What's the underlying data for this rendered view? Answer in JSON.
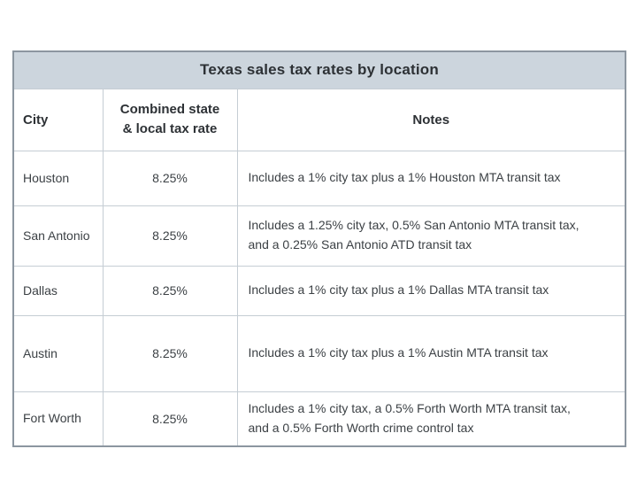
{
  "chart_data": {
    "type": "table",
    "title": "Texas sales tax rates by location",
    "columns": [
      "City",
      "Combined state & local tax rate",
      "Notes"
    ],
    "rows": [
      [
        "Houston",
        "8.25%",
        "Includes a 1% city tax plus a 1% Houston MTA transit tax"
      ],
      [
        "San Antonio",
        "8.25%",
        "Includes a 1.25% city tax, 0.5% San Antonio MTA transit tax, and a 0.25% San Antonio ATD transit tax"
      ],
      [
        "Dallas",
        "8.25%",
        "Includes a 1% city tax plus a 1% Dallas MTA transit tax"
      ],
      [
        "Austin",
        "8.25%",
        "Includes a 1% city tax plus a 1% Austin MTA transit tax"
      ],
      [
        "Fort Worth",
        "8.25%",
        "Includes a 1% city tax, a 0.5% Forth Worth MTA transit tax, and a 0.5% Forth Worth crime control tax"
      ]
    ],
    "layout": {
      "legend": "none",
      "grid": "on",
      "title_position": "top-banner"
    }
  },
  "colors": {
    "title_background": "#ccd5dd",
    "outer_border": "#8c96a0",
    "grid_line": "#c5cdd4",
    "heading_text": "#2d3135",
    "body_text": "#3c4145",
    "page_background": "#ffffff"
  }
}
